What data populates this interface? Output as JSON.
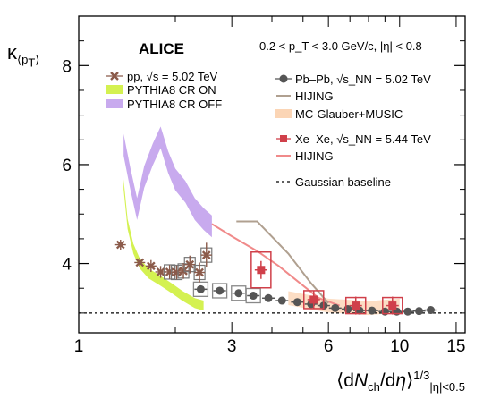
{
  "chart_data": {
    "type": "scatter",
    "title": "ALICE",
    "subtitle": "0.2 < p_T < 3.0 GeV/c, |η| < 0.8",
    "xlabel": "⟨dN_ch/dη⟩^{1/3}_{|η|<0.5}",
    "ylabel": "κ_⟨p_T⟩",
    "xscale": "log",
    "xlim": [
      1,
      16
    ],
    "ylim": [
      2.6,
      9.0
    ],
    "xticks": [
      1,
      3,
      6,
      10,
      15
    ],
    "yticks": [
      4,
      6,
      8
    ],
    "gaussian_baseline": 3.0,
    "legend": {
      "pp": "pp, √s = 5.02 TeV",
      "pythia_on": "PYTHIA8 CR ON",
      "pythia_off": "PYTHIA8 CR OFF",
      "pbpb": "Pb–Pb, √s_NN = 5.02 TeV",
      "hijing_pb": "HIJING",
      "music": "MC-Glauber+MUSIC",
      "xexe": "Xe–Xe, √s_NN = 5.44 TeV",
      "hijing_xe": "HIJING",
      "baseline": "Gaussian baseline"
    },
    "series": [
      {
        "name": "pp, √s = 5.02 TeV",
        "color": "#8b5a4a",
        "x": [
          1.35,
          1.55,
          1.68,
          1.8,
          1.92,
          2.02,
          2.12,
          2.22,
          2.38,
          2.5
        ],
        "y": [
          4.38,
          4.02,
          3.95,
          3.83,
          3.83,
          3.82,
          3.85,
          3.98,
          3.82,
          4.17
        ]
      },
      {
        "name": "Pb–Pb, √s_NN = 5.02 TeV",
        "color": "#555555",
        "x": [
          2.4,
          2.75,
          3.15,
          3.5,
          3.9,
          4.3,
          4.8,
          5.3,
          5.8,
          6.3,
          6.9,
          7.5,
          8.2,
          9.0,
          9.8,
          10.6,
          11.5,
          12.5
        ],
        "y": [
          3.48,
          3.45,
          3.4,
          3.35,
          3.3,
          3.25,
          3.22,
          3.18,
          3.15,
          3.1,
          3.08,
          3.05,
          3.05,
          3.03,
          3.03,
          3.03,
          3.04,
          3.06
        ]
      },
      {
        "name": "Xe–Xe, √s_NN = 5.44 TeV",
        "color": "#d0404a",
        "x": [
          3.7,
          5.4,
          7.3,
          9.5
        ],
        "y": [
          3.87,
          3.27,
          3.15,
          3.15
        ]
      },
      {
        "name": "PYTHIA8 CR ON",
        "color": "#ccee33",
        "x": [
          1.38,
          1.42,
          1.48,
          1.55,
          1.65,
          1.8,
          1.95,
          2.1,
          2.3,
          2.45
        ],
        "y": [
          5.6,
          4.8,
          4.3,
          4.0,
          3.8,
          3.65,
          3.5,
          3.35,
          3.2,
          3.15
        ]
      },
      {
        "name": "PYTHIA8 CR OFF",
        "color": "#b58ee8",
        "x": [
          1.38,
          1.45,
          1.52,
          1.6,
          1.7,
          1.8,
          1.9,
          2.0,
          2.15,
          2.3,
          2.45,
          2.6
        ],
        "y": [
          6.4,
          5.7,
          5.1,
          5.75,
          6.2,
          6.55,
          6.05,
          5.7,
          5.45,
          5.1,
          4.9,
          4.75
        ]
      },
      {
        "name": "HIJING",
        "color": "#b0a090",
        "x": [
          3.1,
          3.6,
          4.5,
          5.3,
          6.0
        ],
        "y": [
          4.85,
          4.85,
          4.2,
          3.6,
          3.2
        ]
      },
      {
        "name": "MC-Glauber+MUSIC",
        "color": "#fbd5b5",
        "x": [
          4.5,
          6.0,
          8.0,
          10.0
        ],
        "y": [
          3.3,
          3.15,
          3.1,
          3.15
        ]
      },
      {
        "name": "HIJING",
        "color": "#f08a8a",
        "x": [
          2.6,
          3.0,
          3.6,
          4.2,
          4.9,
          5.6,
          6.5
        ],
        "y": [
          4.8,
          4.55,
          4.25,
          3.95,
          3.6,
          3.3,
          3.15
        ]
      }
    ]
  }
}
